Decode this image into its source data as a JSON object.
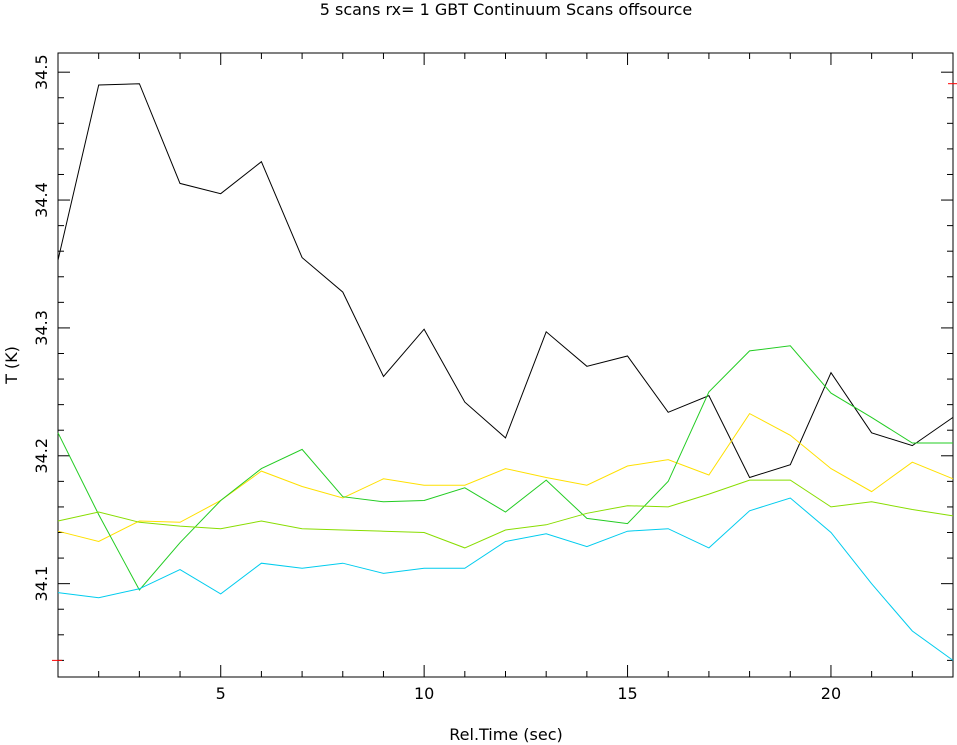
{
  "chart_data": {
    "type": "line",
    "title": "5 scans rx= 1 GBT Continuum Scans offsource",
    "xlabel": "Rel.Time (sec)",
    "ylabel": "T (K)",
    "xlim": [
      1,
      23
    ],
    "ylim": [
      34.027,
      34.515
    ],
    "x_ticks": [
      5,
      10,
      15,
      20
    ],
    "x_tick_labels": [
      "5",
      "10",
      "15",
      "20"
    ],
    "y_ticks": [
      34.1,
      34.2,
      34.3,
      34.4,
      34.5
    ],
    "y_tick_labels": [
      "34.1",
      "34.2",
      "34.3",
      "34.4",
      "34.5"
    ],
    "grid": false,
    "legend": "none",
    "red_marks_y": [
      34.491,
      34.04
    ],
    "x": [
      1,
      2,
      3,
      4,
      5,
      6,
      7,
      8,
      9,
      10,
      11,
      12,
      13,
      14,
      15,
      16,
      17,
      18,
      19,
      20,
      21,
      22,
      23
    ],
    "series": [
      {
        "color": "#000000",
        "values": [
          34.353,
          34.49,
          34.491,
          34.413,
          34.405,
          34.43,
          34.355,
          34.328,
          34.262,
          34.299,
          34.242,
          34.214,
          34.297,
          34.27,
          34.278,
          34.234,
          34.247,
          34.183,
          34.193,
          34.265,
          34.218,
          34.208,
          34.23
        ]
      },
      {
        "color": "#ffe000",
        "values": [
          34.141,
          34.133,
          34.149,
          34.148,
          34.165,
          34.188,
          34.176,
          34.167,
          34.182,
          34.177,
          34.177,
          34.19,
          34.183,
          34.177,
          34.192,
          34.197,
          34.185,
          34.233,
          34.216,
          34.19,
          34.172,
          34.195,
          34.182
        ]
      },
      {
        "color": "#22cc22",
        "values": [
          34.218,
          34.154,
          34.095,
          34.132,
          34.165,
          34.19,
          34.205,
          34.168,
          34.164,
          34.165,
          34.175,
          34.156,
          34.181,
          34.151,
          34.147,
          34.18,
          34.25,
          34.282,
          34.286,
          34.249,
          34.23,
          34.21,
          34.21
        ]
      },
      {
        "color": "#88dd00",
        "values": [
          34.149,
          34.156,
          34.148,
          34.145,
          34.143,
          34.149,
          34.143,
          34.142,
          34.141,
          34.14,
          34.128,
          34.142,
          34.146,
          34.155,
          34.161,
          34.16,
          34.17,
          34.181,
          34.181,
          34.16,
          34.164,
          34.158,
          34.153
        ]
      },
      {
        "color": "#00ccee",
        "values": [
          34.093,
          34.089,
          34.096,
          34.111,
          34.092,
          34.116,
          34.112,
          34.116,
          34.108,
          34.112,
          34.112,
          34.133,
          34.139,
          34.129,
          34.141,
          34.143,
          34.128,
          34.157,
          34.167,
          34.14,
          34.1,
          34.063,
          34.04
        ]
      }
    ]
  }
}
